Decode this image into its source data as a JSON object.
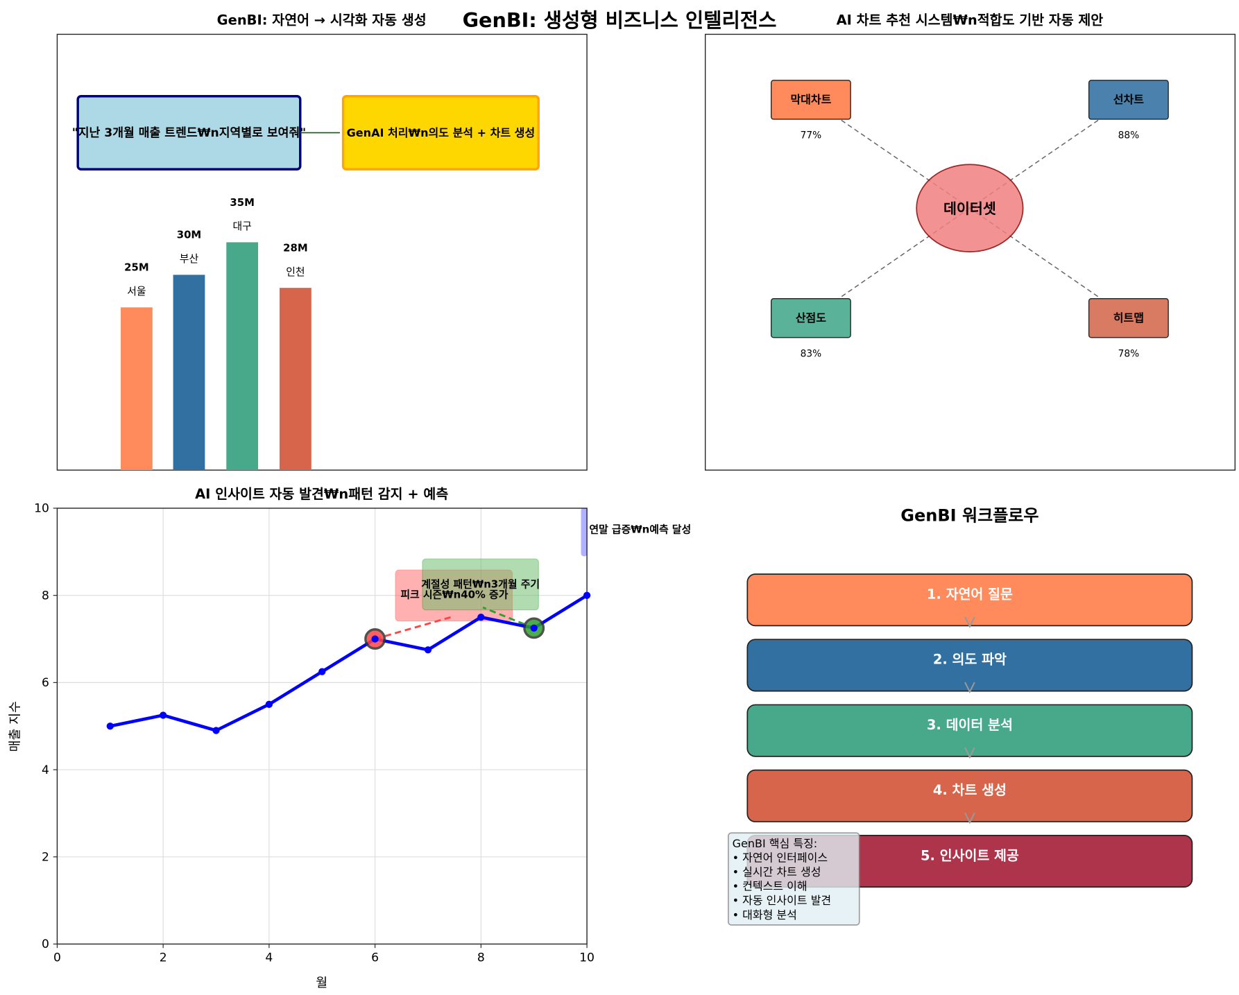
{
  "suptitle": "GenBI: 생성형 비즈니스 인텔리전스",
  "chart_data": [
    {
      "type": "bar",
      "title": "GenBI: 자연어 → 시각화 자동 생성",
      "query_box": "\"지난 3개월 매출 트렌드₩n지역별로 보여줘\"",
      "ai_box": "GenAI 처리₩n의도 분석 + 차트 생성",
      "categories": [
        "서울",
        "부산",
        "대구",
        "인천"
      ],
      "values": [
        25,
        30,
        35,
        28
      ],
      "value_labels": [
        "25M",
        "30M",
        "35M",
        "28M"
      ],
      "colors": [
        "#ff8a5b",
        "#3170a0",
        "#47a88a",
        "#d6654c"
      ]
    },
    {
      "type": "diagram",
      "title": "AI 차트 추천 시스템₩n적합도 기반 자동 제안",
      "center": "데이터셋",
      "items": [
        {
          "label": "막대차트",
          "score": "77%",
          "color": "#ff8a5b"
        },
        {
          "label": "선차트",
          "score": "88%",
          "color": "#4a82ad"
        },
        {
          "label": "산점도",
          "score": "83%",
          "color": "#5ab298"
        },
        {
          "label": "히트맵",
          "score": "78%",
          "color": "#d97a62"
        }
      ]
    },
    {
      "type": "line",
      "title": "AI 인사이트 자동 발견₩n패턴 감지 + 예측",
      "xlabel": "월",
      "ylabel": "매출 지수",
      "xlim": [
        0,
        10
      ],
      "ylim": [
        0,
        10
      ],
      "xticks": [
        "0",
        "2",
        "4",
        "6",
        "8",
        "10"
      ],
      "yticks": [
        "0",
        "2",
        "4",
        "6",
        "8",
        "10"
      ],
      "grid": true,
      "x": [
        1,
        2,
        3,
        4,
        5,
        6,
        7,
        8,
        9,
        10
      ],
      "y": [
        5,
        5.25,
        4.9,
        5.5,
        6.25,
        7,
        6.75,
        7.5,
        7.25,
        8
      ],
      "line_color": "#0000ff",
      "annotations": [
        {
          "text": "피크 시즌₩n40% 증가",
          "at": [
            6,
            7
          ],
          "color": "#ff4444"
        },
        {
          "text": "계절성 패턴₩n3개월 주기",
          "at": [
            9,
            7.25
          ],
          "color": "#2ca02c"
        },
        {
          "text": "연말 급증₩n예측 달성",
          "color": "#6666ff"
        }
      ]
    },
    {
      "type": "diagram",
      "title": "GenBI 워크플로우",
      "steps": [
        {
          "label": "1. 자연어 질문",
          "color": "#ff8a5b"
        },
        {
          "label": "2. 의도 파악",
          "color": "#3170a0"
        },
        {
          "label": "3. 데이터 분석",
          "color": "#47a88a"
        },
        {
          "label": "4. 차트 생성",
          "color": "#d6654c"
        },
        {
          "label": "5. 인사이트 제공",
          "color": "#ad344a"
        }
      ],
      "features_title": "GenBI 핵심 특징:",
      "features": [
        "자연어 인터페이스",
        "실시간 차트 생성",
        "컨텍스트 이해",
        "자동 인사이트 발견",
        "대화형 분석"
      ]
    }
  ]
}
